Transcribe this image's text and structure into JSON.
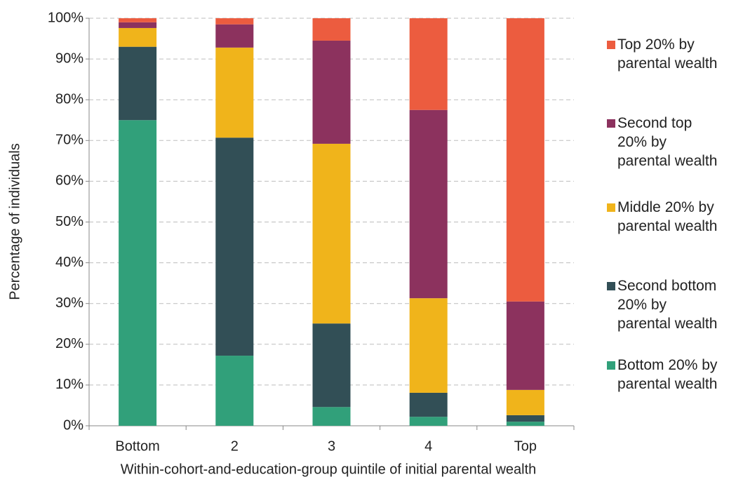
{
  "chart_data": {
    "type": "stacked-bar",
    "y_label": "Percentage of individuals",
    "x_label": "Within-cohort-and-education-group quintile of initial parental wealth",
    "categories": [
      "Bottom",
      "2",
      "3",
      "4",
      "Top"
    ],
    "series": [
      {
        "name": "Bottom 20% by\nparental wealth",
        "color": "#31a07a",
        "values": [
          75,
          17.2,
          4.6,
          2.2,
          1.0
        ]
      },
      {
        "name": "Second bottom\n20% by\nparental wealth",
        "color": "#324f56",
        "values": [
          18,
          53.5,
          20.5,
          5.9,
          1.6
        ]
      },
      {
        "name": "Middle 20% by\nparental wealth",
        "color": "#f0b41b",
        "values": [
          4.6,
          22.1,
          44.1,
          23.2,
          6.2
        ]
      },
      {
        "name": "Second top\n20% by\nparental wealth",
        "color": "#8c325e",
        "values": [
          1.4,
          5.7,
          25.3,
          46.2,
          21.7
        ]
      },
      {
        "name": "Top 20% by\nparental wealth",
        "color": "#ec5c3f",
        "values": [
          1,
          1.5,
          5.5,
          22.5,
          69.5
        ]
      }
    ],
    "ylim": [
      0,
      100
    ],
    "yticks": [
      {
        "value": 0,
        "label": "0%"
      },
      {
        "value": 10,
        "label": "10%"
      },
      {
        "value": 20,
        "label": "20%"
      },
      {
        "value": 30,
        "label": "30%"
      },
      {
        "value": 40,
        "label": "40%"
      },
      {
        "value": 50,
        "label": "50%"
      },
      {
        "value": 60,
        "label": "60%"
      },
      {
        "value": 70,
        "label": "70%"
      },
      {
        "value": 80,
        "label": "80%"
      },
      {
        "value": 90,
        "label": "90%"
      },
      {
        "value": 100,
        "label": "100%"
      }
    ],
    "grid": true
  }
}
